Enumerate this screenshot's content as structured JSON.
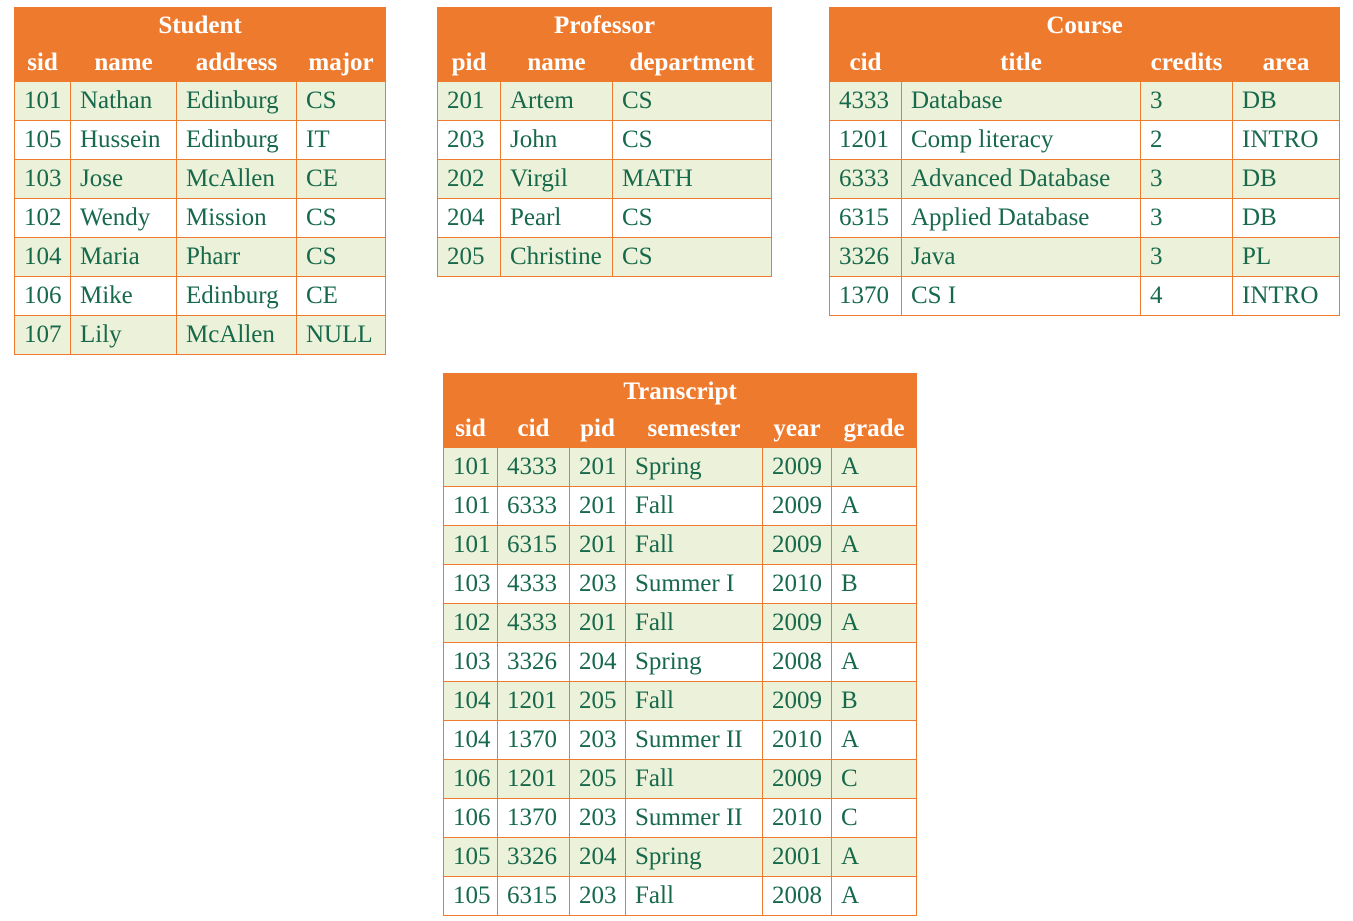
{
  "colors": {
    "header_bg": "#ee7a2d",
    "header_text": "#ffffff",
    "border": "#ee7a2d",
    "data_text": "#17694b",
    "row_alt_bg": "#ecf1d9",
    "row_bg": "#ffffff"
  },
  "tables": [
    {
      "id": "student",
      "title": "Student",
      "columns": [
        "sid",
        "name",
        "address",
        "major"
      ],
      "rows": [
        [
          "101",
          "Nathan",
          "Edinburg",
          "CS"
        ],
        [
          "105",
          "Hussein",
          "Edinburg",
          "IT"
        ],
        [
          "103",
          "Jose",
          "McAllen",
          "CE"
        ],
        [
          "102",
          "Wendy",
          "Mission",
          "CS"
        ],
        [
          "104",
          "Maria",
          "Pharr",
          "CS"
        ],
        [
          "106",
          "Mike",
          "Edinburg",
          "CE"
        ],
        [
          "107",
          "Lily",
          "McAllen",
          "NULL"
        ]
      ]
    },
    {
      "id": "professor",
      "title": "Professor",
      "columns": [
        "pid",
        "name",
        "department"
      ],
      "rows": [
        [
          "201",
          "Artem",
          "CS"
        ],
        [
          "203",
          "John",
          "CS"
        ],
        [
          "202",
          "Virgil",
          "MATH"
        ],
        [
          "204",
          "Pearl",
          "CS"
        ],
        [
          "205",
          "Christine",
          "CS"
        ]
      ]
    },
    {
      "id": "course",
      "title": "Course",
      "columns": [
        "cid",
        "title",
        "credits",
        "area"
      ],
      "rows": [
        [
          "4333",
          "Database",
          "3",
          "DB"
        ],
        [
          "1201",
          "Comp literacy",
          "2",
          "INTRO"
        ],
        [
          "6333",
          "Advanced Database",
          "3",
          "DB"
        ],
        [
          "6315",
          "Applied Database",
          "3",
          "DB"
        ],
        [
          "3326",
          "Java",
          "3",
          "PL"
        ],
        [
          "1370",
          "CS I",
          "4",
          "INTRO"
        ]
      ]
    },
    {
      "id": "transcript",
      "title": "Transcript",
      "columns": [
        "sid",
        "cid",
        "pid",
        "semester",
        "year",
        "grade"
      ],
      "rows": [
        [
          "101",
          "4333",
          "201",
          "Spring",
          "2009",
          "A"
        ],
        [
          "101",
          "6333",
          "201",
          "Fall",
          "2009",
          "A"
        ],
        [
          "101",
          "6315",
          "201",
          "Fall",
          "2009",
          "A"
        ],
        [
          "103",
          "4333",
          "203",
          "Summer I",
          "2010",
          "B"
        ],
        [
          "102",
          "4333",
          "201",
          "Fall",
          "2009",
          "A"
        ],
        [
          "103",
          "3326",
          "204",
          "Spring",
          "2008",
          "A"
        ],
        [
          "104",
          "1201",
          "205",
          "Fall",
          "2009",
          "B"
        ],
        [
          "104",
          "1370",
          "203",
          "Summer II",
          "2010",
          "A"
        ],
        [
          "106",
          "1201",
          "205",
          "Fall",
          "2009",
          "C"
        ],
        [
          "106",
          "1370",
          "203",
          "Summer II",
          "2010",
          "C"
        ],
        [
          "105",
          "3326",
          "204",
          "Spring",
          "2001",
          "A"
        ],
        [
          "105",
          "6315",
          "203",
          "Fall",
          "2008",
          "A"
        ]
      ]
    }
  ]
}
